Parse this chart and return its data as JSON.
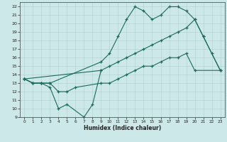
{
  "xlabel": "Humidex (Indice chaleur)",
  "bg_color": "#cce8e8",
  "line_color": "#1a6b5a",
  "xlim": [
    -0.5,
    23.5
  ],
  "ylim": [
    9,
    22.5
  ],
  "yticks": [
    9,
    10,
    11,
    12,
    13,
    14,
    15,
    16,
    17,
    18,
    19,
    20,
    21,
    22
  ],
  "xticks": [
    0,
    1,
    2,
    3,
    4,
    5,
    6,
    7,
    8,
    9,
    10,
    11,
    12,
    13,
    14,
    15,
    16,
    17,
    18,
    19,
    20,
    21,
    22,
    23
  ],
  "line1_x": [
    0,
    1,
    2,
    3,
    4,
    5,
    7,
    8,
    9
  ],
  "line1_y": [
    13.5,
    13.0,
    13.0,
    12.5,
    10.0,
    10.5,
    9.0,
    10.5,
    14.5
  ],
  "line2_x": [
    0,
    1,
    2,
    3,
    4,
    5,
    6,
    9,
    10,
    11,
    12,
    13,
    14,
    15,
    16,
    17,
    18,
    19,
    20,
    23
  ],
  "line2_y": [
    13.5,
    13.0,
    13.0,
    13.0,
    12.0,
    12.0,
    12.5,
    13.0,
    13.0,
    13.5,
    14.0,
    14.5,
    15.0,
    15.0,
    15.5,
    16.0,
    16.0,
    16.5,
    14.5,
    14.5
  ],
  "line3_x": [
    0,
    1,
    2,
    3,
    9,
    10,
    11,
    12,
    13,
    14,
    15,
    16,
    17,
    18,
    19,
    20,
    21,
    22,
    23
  ],
  "line3_y": [
    13.5,
    13.0,
    13.0,
    13.0,
    15.5,
    16.5,
    18.5,
    20.5,
    22.0,
    21.5,
    20.5,
    21.0,
    22.0,
    22.0,
    21.5,
    20.5,
    18.5,
    16.5,
    14.5
  ],
  "line4_x": [
    0,
    9,
    10,
    11,
    12,
    13,
    14,
    15,
    16,
    17,
    18,
    19,
    20,
    21,
    23
  ],
  "line4_y": [
    13.5,
    14.5,
    15.0,
    15.5,
    16.0,
    16.5,
    17.0,
    17.5,
    18.0,
    18.5,
    19.0,
    19.5,
    20.5,
    18.5,
    14.5
  ]
}
